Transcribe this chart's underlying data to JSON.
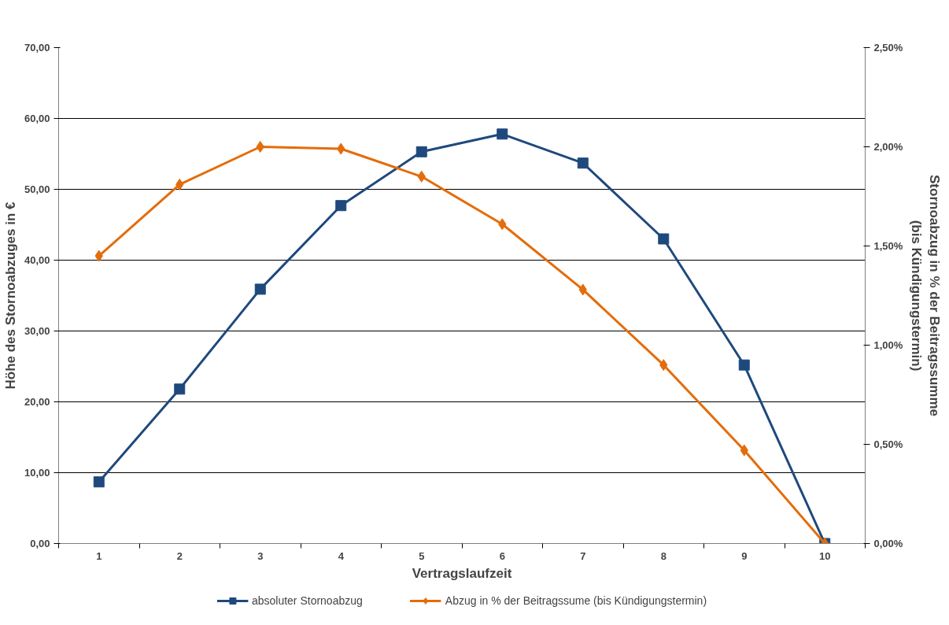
{
  "chart_data": {
    "type": "line",
    "xlabel": "Vertragslaufzeit",
    "ylabel": "Höhe des Stornoabzuges in €",
    "y2label": "Stornoabzug in % der Beitragssumme\n(bis Kündigungstermin)",
    "categories": [
      "1",
      "2",
      "3",
      "4",
      "5",
      "6",
      "7",
      "8",
      "9",
      "10"
    ],
    "series": [
      {
        "name": "absoluter Stornoabzug",
        "color": "#1f497d",
        "marker": "square",
        "values": [
          8.7,
          21.8,
          35.9,
          47.7,
          55.3,
          57.8,
          53.7,
          43.0,
          25.2,
          0
        ]
      },
      {
        "name": "Abzug in % der Beitragssume (bis Kündigungstermin)",
        "color": "#e46c0a",
        "marker": "diamond",
        "axis": "y2",
        "values": [
          1.45,
          1.81,
          2.0,
          1.99,
          1.85,
          1.61,
          1.28,
          0.9,
          0.47,
          0
        ]
      }
    ],
    "ylim": [
      0,
      70
    ],
    "yticks": [
      {
        "value": 0,
        "label": "0,00"
      },
      {
        "value": 10,
        "label": "10,00"
      },
      {
        "value": 20,
        "label": "20,00"
      },
      {
        "value": 30,
        "label": "30,00"
      },
      {
        "value": 40,
        "label": "40,00"
      },
      {
        "value": 50,
        "label": "50,00"
      },
      {
        "value": 60,
        "label": "60,00"
      },
      {
        "value": 70,
        "label": "70,00"
      }
    ],
    "y2lim": [
      0,
      2.5
    ],
    "y2ticks": [
      {
        "value": 0,
        "label": "0,00%"
      },
      {
        "value": 0.5,
        "label": "0,50%"
      },
      {
        "value": 1,
        "label": "1,00%"
      },
      {
        "value": 1.5,
        "label": "1,50%"
      },
      {
        "value": 2,
        "label": "2,00%"
      },
      {
        "value": 2.5,
        "label": "2,50%"
      }
    ],
    "grid": "y",
    "legend": "bottom",
    "line_style": "solid"
  }
}
